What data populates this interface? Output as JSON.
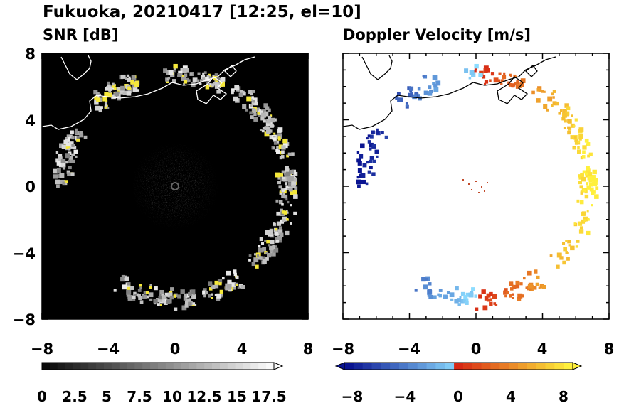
{
  "figure": {
    "title": "Fukuoka, 20210417 [12:25, el=10]"
  },
  "chart_data": [
    {
      "type": "heatmap",
      "title": "SNR [dB]",
      "xlim": [
        -8,
        8
      ],
      "ylim": [
        -8,
        8
      ],
      "x_ticks": [
        "−8",
        "−4",
        "0",
        "4",
        "8"
      ],
      "y_ticks": [
        "8",
        "4",
        "0",
        "−4",
        "−8"
      ],
      "background_color": "#000000",
      "colorbar": {
        "min": 0,
        "max": 18.75,
        "step": 0.625,
        "extend": "max",
        "tick_labels": [
          "0",
          "2.5",
          "5",
          "7.5",
          "10",
          "12.5",
          "15",
          "17.5"
        ],
        "tick_values": [
          0,
          2.5,
          5,
          7.5,
          10,
          12.5,
          15,
          17.5
        ]
      },
      "echo_ring_center": [
        0,
        0
      ],
      "echo_ring_radius_km": [
        6.3,
        7.2
      ]
    },
    {
      "type": "heatmap",
      "title": "Doppler Velocity [m/s]",
      "xlim": [
        -8,
        8
      ],
      "ylim": [
        -8,
        8
      ],
      "x_ticks": [
        "−8",
        "−4",
        "0",
        "4",
        "8"
      ],
      "y_ticks": [
        "8",
        "4",
        "0",
        "−4",
        "−8"
      ],
      "background_color": "#ffffff",
      "colorbar": {
        "min": -10,
        "max": 10,
        "step": 0.8,
        "extend": "both",
        "tick_labels": [
          "−8",
          "−4",
          "0",
          "4",
          "8"
        ],
        "tick_values": [
          -8,
          -4,
          0,
          4,
          8
        ]
      },
      "velocity_pattern": "negative (blue) to the west, positive (orange/yellow) to the east"
    }
  ]
}
